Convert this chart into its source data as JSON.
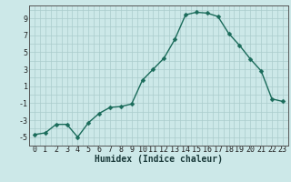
{
  "x": [
    0,
    1,
    2,
    3,
    4,
    5,
    6,
    7,
    8,
    9,
    10,
    11,
    12,
    13,
    14,
    15,
    16,
    17,
    18,
    19,
    20,
    21,
    22,
    23
  ],
  "y": [
    -4.7,
    -4.5,
    -3.5,
    -3.5,
    -5.0,
    -3.3,
    -2.2,
    -1.5,
    -1.4,
    -1.1,
    1.7,
    3.0,
    4.3,
    6.5,
    9.4,
    9.7,
    9.6,
    9.2,
    7.2,
    5.8,
    4.2,
    2.8,
    -0.5,
    -0.8
  ],
  "line_color": "#1a6b5a",
  "bg_color": "#cce8e8",
  "grid_color": "#aacccc",
  "xlabel": "Humidex (Indice chaleur)",
  "ylim": [
    -6,
    10.5
  ],
  "xlim": [
    -0.5,
    23.5
  ],
  "yticks": [
    -5,
    -3,
    -1,
    1,
    3,
    5,
    7,
    9
  ],
  "xticks": [
    0,
    1,
    2,
    3,
    4,
    5,
    6,
    7,
    8,
    9,
    10,
    11,
    12,
    13,
    14,
    15,
    16,
    17,
    18,
    19,
    20,
    21,
    22,
    23
  ],
  "marker_size": 2.5,
  "line_width": 1.0,
  "xlabel_fontsize": 7,
  "tick_fontsize": 6
}
